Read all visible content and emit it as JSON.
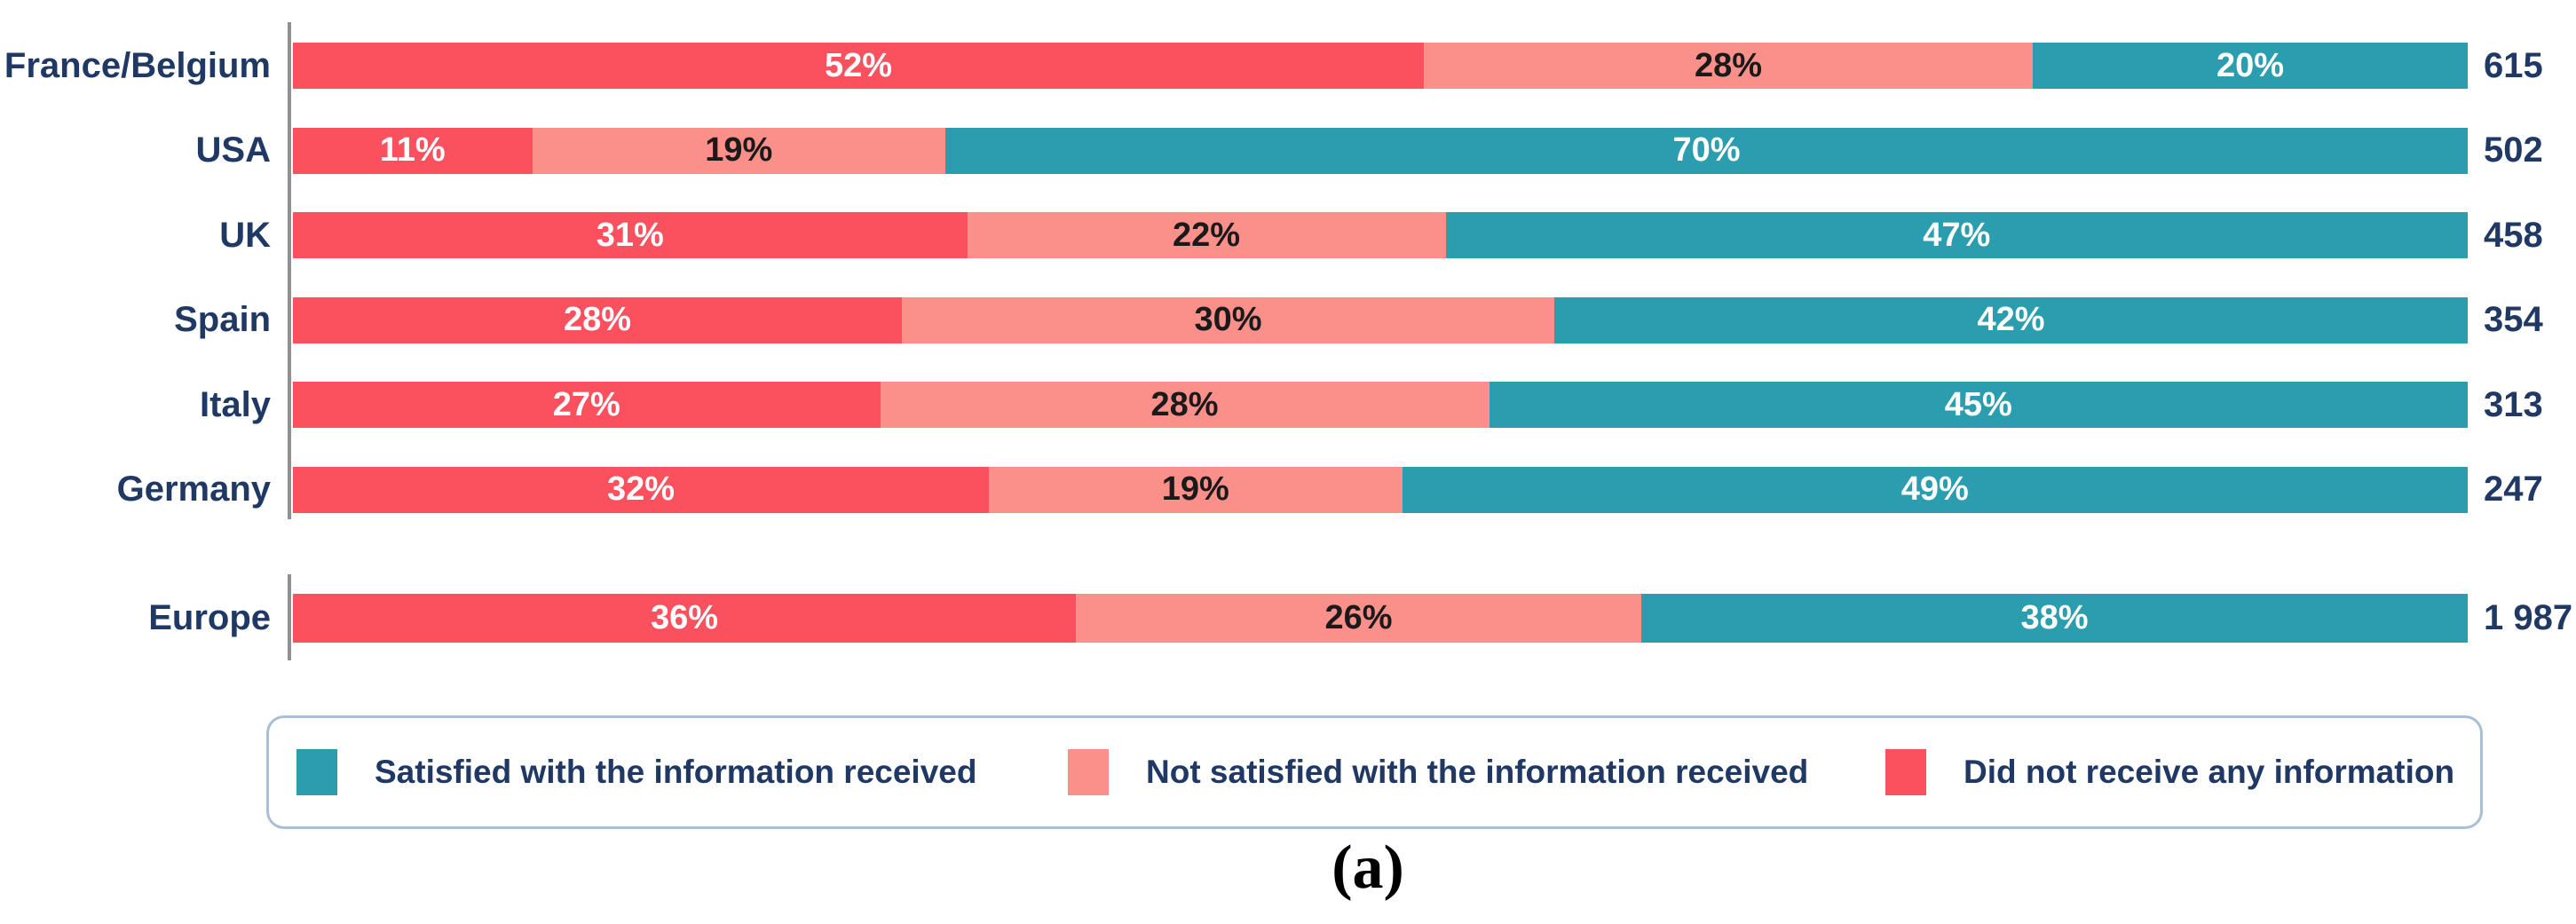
{
  "caption": "(a)",
  "colors": {
    "satisfied_teal": "#2A9DAF",
    "not_satisfied_pink": "#FB8F89",
    "did_not_receive_red": "#FB515F",
    "label_navy": "#1F3864",
    "value_on_pink": "#1A1A1A",
    "value_on_dark": "#FFFFFF",
    "axis_gray": "#909090",
    "legend_border": "#A9BFD6"
  },
  "chart_data": {
    "type": "bar",
    "orientation": "horizontal",
    "stacked": true,
    "unit": "%",
    "grid": false,
    "legend_position": "bottom",
    "series_order": [
      "did_not_receive",
      "not_satisfied",
      "satisfied"
    ],
    "categories": [
      "France/Belgium",
      "USA",
      "UK",
      "Spain",
      "Italy",
      "Germany"
    ],
    "rows": [
      {
        "label": "France/Belgium",
        "did_not_receive": 52,
        "not_satisfied": 28,
        "satisfied": 20,
        "total": "615"
      },
      {
        "label": "USA",
        "did_not_receive": 11,
        "not_satisfied": 19,
        "satisfied": 70,
        "total": "502"
      },
      {
        "label": "UK",
        "did_not_receive": 31,
        "not_satisfied": 22,
        "satisfied": 47,
        "total": "458"
      },
      {
        "label": "Spain",
        "did_not_receive": 28,
        "not_satisfied": 30,
        "satisfied": 42,
        "total": "354"
      },
      {
        "label": "Italy",
        "did_not_receive": 27,
        "not_satisfied": 28,
        "satisfied": 45,
        "total": "313"
      },
      {
        "label": "Germany",
        "did_not_receive": 32,
        "not_satisfied": 19,
        "satisfied": 49,
        "total": "247"
      }
    ],
    "europe_row": {
      "label": "Europe",
      "did_not_receive": 36,
      "not_satisfied": 26,
      "satisfied": 38,
      "total": "1 987"
    },
    "legend": [
      {
        "key": "satisfied",
        "label": "Satisfied with the information received"
      },
      {
        "key": "not_satisfied",
        "label": "Not satisfied with the information received"
      },
      {
        "key": "did_not_receive",
        "label": "Did not receive any information"
      }
    ]
  }
}
